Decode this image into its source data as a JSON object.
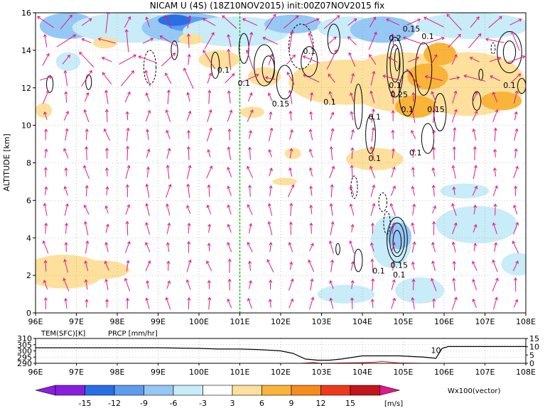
{
  "title": "NICAM U (4S) (18Z10NOV2015) init:00Z07NOV2015 fix",
  "colors": {
    "wind_vectors": "#e0188c",
    "meridian_line": "#20c020",
    "precip_line": "#e02020",
    "temp_line": "#000000",
    "neg15": "#8a1ee0",
    "neg12": "#2a6ee6",
    "neg9": "#5e9cf0",
    "neg6": "#96c8f6",
    "neg3": "#c8ecf8",
    "zero": "#ffffff",
    "pos3": "#fde09c",
    "pos6": "#f9b43a",
    "pos9": "#f98a1c",
    "pos12": "#ee3a1c",
    "pos15": "#c4141c"
  },
  "chart_data": [
    {
      "type": "heatmap",
      "title": "NICAM U (4S) (18Z10NOV2015) init:00Z07NOV2015 fix",
      "ylabel": "ALTITUDE [km]",
      "xlim": [
        96,
        108
      ],
      "ylim": [
        0,
        16
      ],
      "x_ticks": [
        "96E",
        "97E",
        "98E",
        "99E",
        "100E",
        "101E",
        "102E",
        "103E",
        "104E",
        "105E",
        "106E",
        "107E",
        "108E"
      ],
      "y_ticks": [
        "0",
        "2",
        "4",
        "6",
        "8",
        "10",
        "12",
        "14",
        "16"
      ],
      "grid": true,
      "marked_longitude": 101,
      "contour_labels": [
        {
          "text": "0.1",
          "x": 102.7,
          "y": 13.8
        },
        {
          "text": "0.1",
          "x": 100.6,
          "y": 12.8
        },
        {
          "text": "0.1",
          "x": 101.1,
          "y": 12.1
        },
        {
          "text": "0.15",
          "x": 102.0,
          "y": 11.0
        },
        {
          "text": "0.1",
          "x": 103.2,
          "y": 11.1
        },
        {
          "text": "0.1",
          "x": 104.3,
          "y": 10.3
        },
        {
          "text": "0.15",
          "x": 105.2,
          "y": 15.0
        },
        {
          "text": "0.2",
          "x": 104.8,
          "y": 14.5
        },
        {
          "text": "0.1",
          "x": 105.6,
          "y": 14.6
        },
        {
          "text": "0.1",
          "x": 104.8,
          "y": 12.0
        },
        {
          "text": "0.25",
          "x": 104.9,
          "y": 11.5
        },
        {
          "text": "0.1",
          "x": 105.1,
          "y": 10.7
        },
        {
          "text": "0.15",
          "x": 105.8,
          "y": 10.7
        },
        {
          "text": "0.1",
          "x": 107.6,
          "y": 12.0
        },
        {
          "text": "0.1",
          "x": 104.3,
          "y": 8.1
        },
        {
          "text": "0.1",
          "x": 105.3,
          "y": 8.4
        },
        {
          "text": "0.1",
          "x": 104.4,
          "y": 2.1
        },
        {
          "text": "0.15",
          "x": 104.9,
          "y": 2.4
        },
        {
          "text": "0.1",
          "x": 104.9,
          "y": 1.9
        }
      ]
    },
    {
      "type": "line",
      "xlim": [
        96,
        108
      ],
      "x_ticks": [
        "96E",
        "97E",
        "98E",
        "99E",
        "100E",
        "101E",
        "102E",
        "103E",
        "104E",
        "105E",
        "106E",
        "107E",
        "108E"
      ],
      "left_axis": {
        "label": "TEM(SFC)[K]",
        "ticks": [
          "290",
          "295",
          "300",
          "305",
          "310"
        ],
        "ylim": [
          290,
          310
        ]
      },
      "right_axis": {
        "label": "PRCP [mm/hr]",
        "ticks": [
          "0",
          "5",
          "10",
          "15"
        ],
        "ylim": [
          0,
          15
        ]
      },
      "series": [
        {
          "name": "TEM(SFC)[K]",
          "x": [
            96,
            97,
            98,
            99,
            100,
            100.5,
            101,
            101.5,
            102,
            102.3,
            102.6,
            102.9,
            103.2,
            103.5,
            103.8,
            104,
            104.3,
            104.6,
            104.9,
            105.2,
            105.5,
            105.8,
            105.95,
            106.1,
            106.5,
            107,
            107.5,
            108
          ],
          "values": [
            302.5,
            302.5,
            302.5,
            302.5,
            302,
            301.5,
            301.5,
            301,
            300,
            298,
            293.5,
            292.5,
            292.5,
            293.5,
            295,
            296,
            296,
            296,
            296,
            295.5,
            295,
            294,
            302,
            303.5,
            303.5,
            303.5,
            303.5,
            303.5
          ]
        },
        {
          "name": "PRCP [mm/hr]",
          "x": [
            96,
            102,
            102.5,
            102.8,
            103,
            103.5,
            104,
            104.3,
            104.5,
            104.7,
            104.9,
            105.2,
            105.5,
            106,
            108
          ],
          "values": [
            0,
            0,
            0,
            0.5,
            0,
            0.2,
            0.4,
            0.7,
            1.2,
            0.6,
            0.2,
            0.1,
            0,
            0,
            0
          ]
        }
      ],
      "annotations": [
        {
          "text": "10",
          "x": 105.8,
          "y": 8
        }
      ]
    }
  ],
  "colorbar": {
    "labels": [
      "-15",
      "-12",
      "-9",
      "-6",
      "-3",
      "3",
      "6",
      "9",
      "12",
      "15"
    ],
    "unit": "[m/s]",
    "vector_note": "Wx100(vector)"
  }
}
